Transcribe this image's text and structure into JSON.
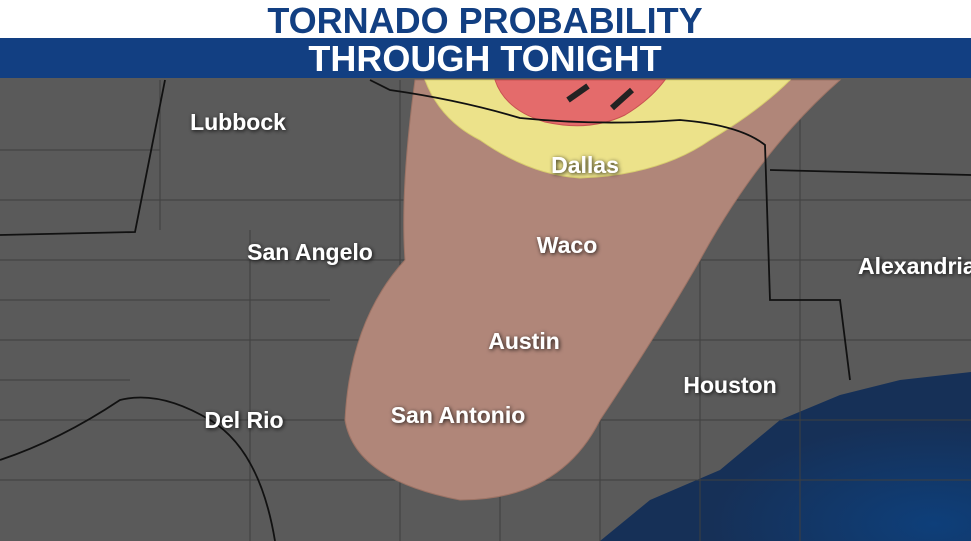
{
  "header": {
    "title": "TORNADO PROBABILITY",
    "subtitle": "THROUGH TONIGHT"
  },
  "cities": [
    {
      "label": "Lubbock"
    },
    {
      "label": "Dallas"
    },
    {
      "label": "San Angelo"
    },
    {
      "label": "Waco"
    },
    {
      "label": "Alexandria"
    },
    {
      "label": "Austin"
    },
    {
      "label": "Houston"
    },
    {
      "label": "Del Rio"
    },
    {
      "label": "San Antonio"
    }
  ]
}
